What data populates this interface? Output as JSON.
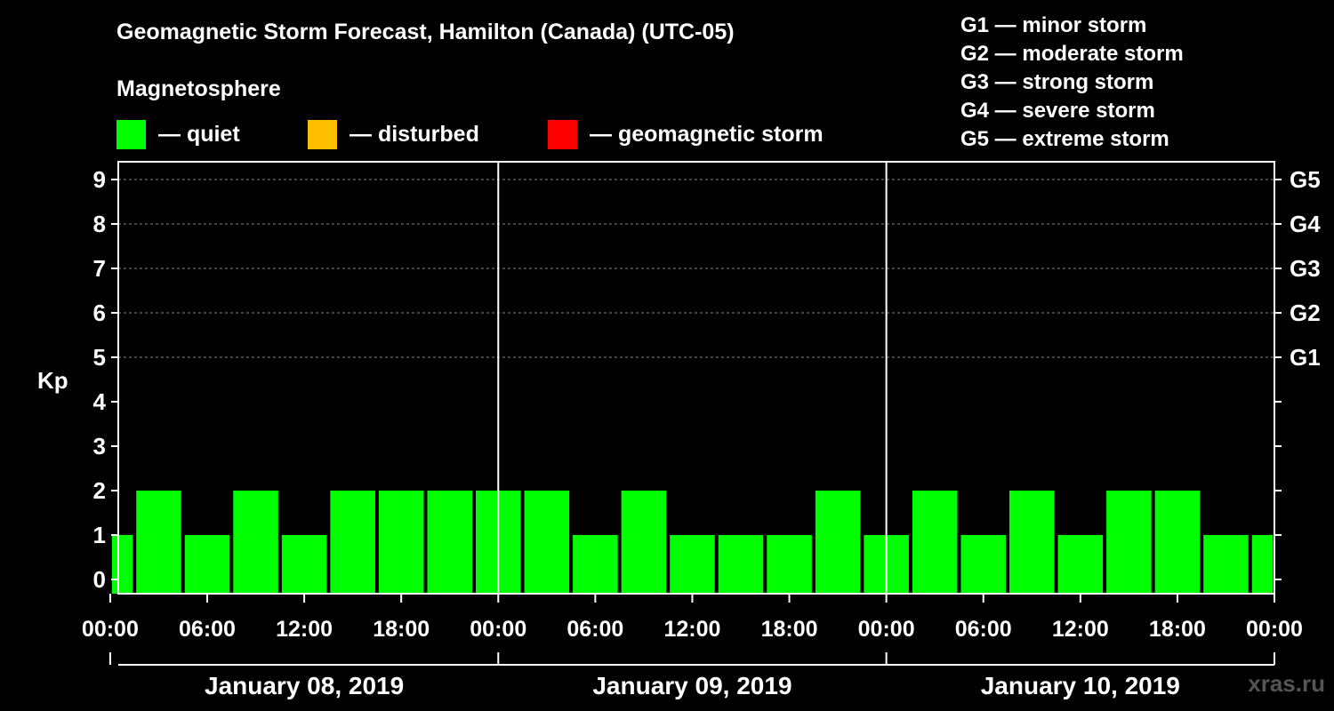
{
  "title": "Geomagnetic Storm Forecast, Hamilton (Canada) (UTC-05)",
  "magnetosphere": {
    "title": "Magnetosphere",
    "legend": [
      {
        "label": "— quiet",
        "color": "#00ff00"
      },
      {
        "label": "— disturbed",
        "color": "#ffbf00"
      },
      {
        "label": "— geomagnetic storm",
        "color": "#ff0000"
      }
    ]
  },
  "g_scale": [
    {
      "label": "G1 — minor storm"
    },
    {
      "label": "G2 — moderate storm"
    },
    {
      "label": "G3 — strong storm"
    },
    {
      "label": "G4 — severe storm"
    },
    {
      "label": "G5 — extreme storm"
    }
  ],
  "watermark": "xras.ru",
  "colors": {
    "quiet": "#00ff00",
    "disturbed": "#ffbf00",
    "storm": "#ff0000",
    "axis": "#ffffff",
    "grid": "#888888"
  },
  "chart_data": {
    "type": "bar",
    "ylabel": "Kp",
    "ylim": [
      0,
      9
    ],
    "yticks": [
      0,
      1,
      2,
      3,
      4,
      5,
      6,
      7,
      8,
      9
    ],
    "right_axis": [
      {
        "kp": 5,
        "label": "G1"
      },
      {
        "kp": 6,
        "label": "G2"
      },
      {
        "kp": 7,
        "label": "G3"
      },
      {
        "kp": 8,
        "label": "G4"
      },
      {
        "kp": 9,
        "label": "G5"
      }
    ],
    "x_hours_total": 72,
    "x_start_hour": 0.5,
    "xtick_hours": [
      0,
      6,
      12,
      18,
      24,
      30,
      36,
      42,
      48,
      54,
      60,
      66,
      72
    ],
    "xtick_labels": [
      "00:00",
      "06:00",
      "12:00",
      "18:00",
      "00:00",
      "06:00",
      "12:00",
      "18:00",
      "00:00",
      "06:00",
      "12:00",
      "18:00",
      "00:00"
    ],
    "days": [
      {
        "label": "January 08, 2019",
        "start": 0,
        "end": 24
      },
      {
        "label": "January 09, 2019",
        "start": 24,
        "end": 48
      },
      {
        "label": "January 10, 2019",
        "start": 48,
        "end": 72
      }
    ],
    "bars": [
      {
        "start": 0,
        "end": 1.5,
        "kp": 1,
        "status": "quiet"
      },
      {
        "start": 1.5,
        "end": 4.5,
        "kp": 2,
        "status": "quiet"
      },
      {
        "start": 4.5,
        "end": 7.5,
        "kp": 1,
        "status": "quiet"
      },
      {
        "start": 7.5,
        "end": 10.5,
        "kp": 2,
        "status": "quiet"
      },
      {
        "start": 10.5,
        "end": 13.5,
        "kp": 1,
        "status": "quiet"
      },
      {
        "start": 13.5,
        "end": 16.5,
        "kp": 2,
        "status": "quiet"
      },
      {
        "start": 16.5,
        "end": 19.5,
        "kp": 2,
        "status": "quiet"
      },
      {
        "start": 19.5,
        "end": 22.5,
        "kp": 2,
        "status": "quiet"
      },
      {
        "start": 22.5,
        "end": 25.5,
        "kp": 2,
        "status": "quiet"
      },
      {
        "start": 25.5,
        "end": 28.5,
        "kp": 2,
        "status": "quiet"
      },
      {
        "start": 28.5,
        "end": 31.5,
        "kp": 1,
        "status": "quiet"
      },
      {
        "start": 31.5,
        "end": 34.5,
        "kp": 2,
        "status": "quiet"
      },
      {
        "start": 34.5,
        "end": 37.5,
        "kp": 1,
        "status": "quiet"
      },
      {
        "start": 37.5,
        "end": 40.5,
        "kp": 1,
        "status": "quiet"
      },
      {
        "start": 40.5,
        "end": 43.5,
        "kp": 1,
        "status": "quiet"
      },
      {
        "start": 43.5,
        "end": 46.5,
        "kp": 2,
        "status": "quiet"
      },
      {
        "start": 46.5,
        "end": 49.5,
        "kp": 1,
        "status": "quiet"
      },
      {
        "start": 49.5,
        "end": 52.5,
        "kp": 2,
        "status": "quiet"
      },
      {
        "start": 52.5,
        "end": 55.5,
        "kp": 1,
        "status": "quiet"
      },
      {
        "start": 55.5,
        "end": 58.5,
        "kp": 2,
        "status": "quiet"
      },
      {
        "start": 58.5,
        "end": 61.5,
        "kp": 1,
        "status": "quiet"
      },
      {
        "start": 61.5,
        "end": 64.5,
        "kp": 2,
        "status": "quiet"
      },
      {
        "start": 64.5,
        "end": 67.5,
        "kp": 2,
        "status": "quiet"
      },
      {
        "start": 67.5,
        "end": 70.5,
        "kp": 1,
        "status": "quiet"
      },
      {
        "start": 70.5,
        "end": 72,
        "kp": 1,
        "status": "quiet"
      }
    ]
  }
}
